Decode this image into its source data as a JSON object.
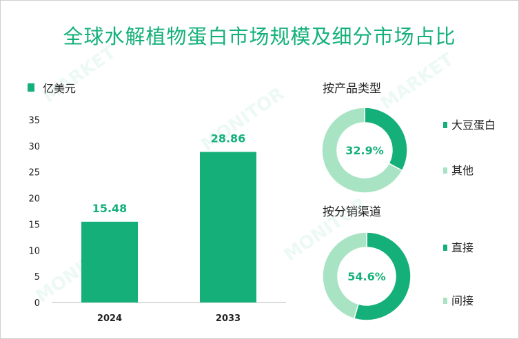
{
  "title": "全球水解植物蛋白市场规模及细分市场占比",
  "colors": {
    "primary": "#15b07a",
    "light": "#a8e4c4",
    "text": "#222222"
  },
  "chart_data": [
    {
      "type": "bar",
      "unit_legend": "亿美元",
      "categories": [
        "2024",
        "2033"
      ],
      "values": [
        15.48,
        28.86
      ],
      "value_labels": [
        "15.48",
        "28.86"
      ],
      "yticks": [
        "0",
        "5",
        "10",
        "15",
        "20",
        "25",
        "30",
        "35"
      ],
      "ylim": [
        0,
        35
      ]
    },
    {
      "type": "pie",
      "title": "按产品类型",
      "center_label": "32.9%",
      "slices": [
        {
          "label": "大豆蛋白",
          "value": 32.9,
          "color": "#15b07a"
        },
        {
          "label": "其他",
          "value": 67.1,
          "color": "#a8e4c4"
        }
      ]
    },
    {
      "type": "pie",
      "title": "按分销渠道",
      "center_label": "54.6%",
      "slices": [
        {
          "label": "直接",
          "value": 54.6,
          "color": "#15b07a"
        },
        {
          "label": "间接",
          "value": 45.4,
          "color": "#a8e4c4"
        }
      ]
    }
  ]
}
